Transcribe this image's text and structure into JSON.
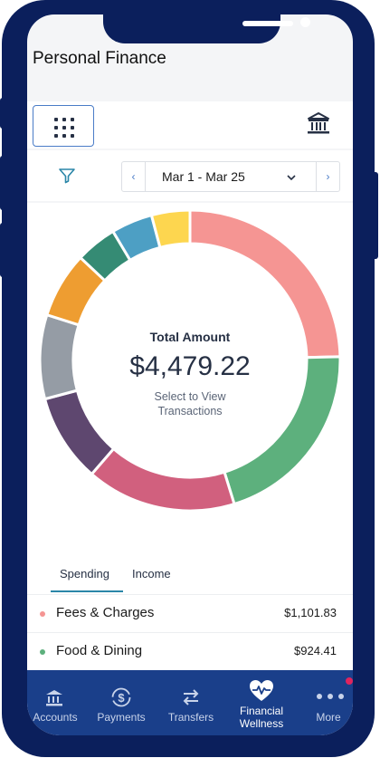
{
  "header": {
    "title": "Personal Finance"
  },
  "toolbar": {
    "grid_icon": "grid-menu-icon",
    "bank_icon": "bank-icon"
  },
  "date_filter": {
    "filter_icon": "filter-icon",
    "prev_label": "‹",
    "next_label": "›",
    "range_label": "Mar 1 - Mar 25"
  },
  "summary": {
    "title": "Total Amount",
    "amount": "$4,479.22",
    "hint_line1": "Select to View",
    "hint_line2": "Transactions"
  },
  "chart_data": {
    "type": "pie",
    "center_label": "Total Amount",
    "total": 4479.22,
    "slices": [
      {
        "value": 1101.83,
        "color": "#f59593"
      },
      {
        "value": 924.41,
        "color": "#5db07d"
      },
      {
        "value": 722.0,
        "color": "#d1607e"
      },
      {
        "value": 426.0,
        "color": "#5e476f"
      },
      {
        "value": 405.0,
        "color": "#959ca5"
      },
      {
        "value": 317.0,
        "color": "#ee9d31"
      },
      {
        "value": 199.0,
        "color": "#358b74"
      },
      {
        "value": 199.0,
        "color": "#4d9fc4"
      },
      {
        "value": 184.98,
        "color": "#fdd64f"
      }
    ]
  },
  "tabs": [
    {
      "label": "Spending",
      "active": true
    },
    {
      "label": "Income",
      "active": false
    }
  ],
  "categories": [
    {
      "name": "Fees & Charges",
      "amount": "$1,101.83",
      "color": "#f59593"
    },
    {
      "name": "Food & Dining",
      "amount": "$924.41",
      "color": "#5db07d"
    }
  ],
  "tabbar": {
    "items": [
      {
        "label": "Accounts",
        "icon": "bank-icon"
      },
      {
        "label": "Payments",
        "icon": "dollar-cycle-icon"
      },
      {
        "label": "Transfers",
        "icon": "transfer-arrows-icon"
      },
      {
        "label_line1": "Financial",
        "label_line2": "Wellness",
        "icon": "heart-pulse-icon",
        "active": true
      },
      {
        "label": "More",
        "icon": "more-dots-icon"
      }
    ],
    "badge_color": "#e0245e"
  },
  "colors": {
    "frame": "#0b1f5c",
    "tabbar": "#1a3f8a",
    "accent": "#4a7cc7"
  }
}
